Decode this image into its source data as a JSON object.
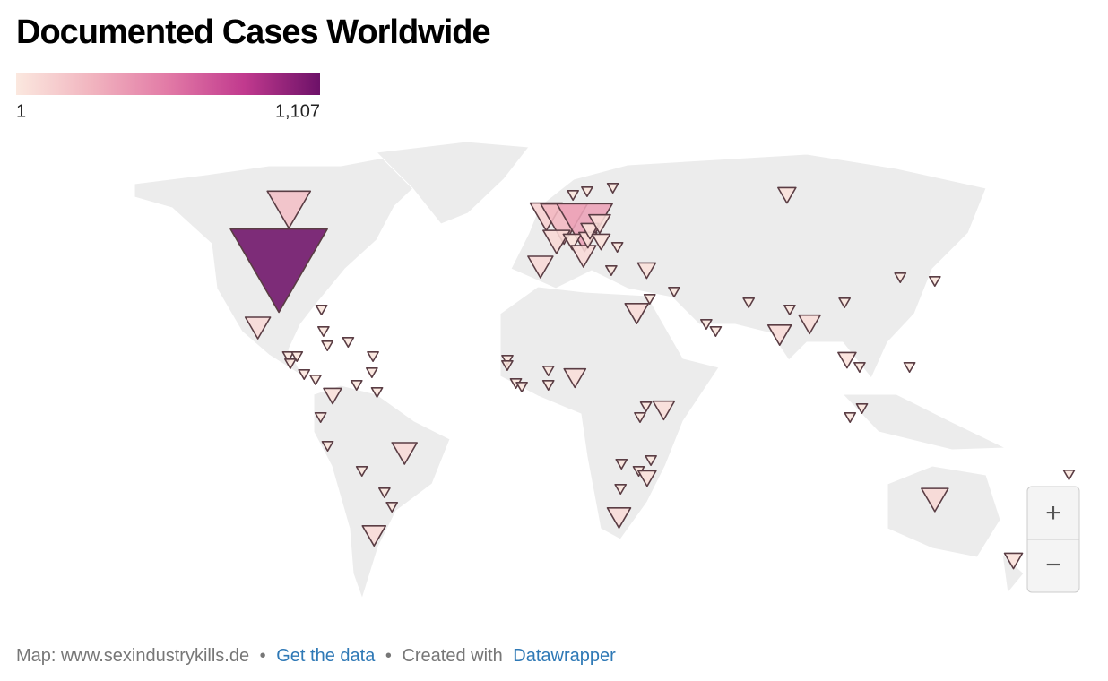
{
  "title": "Documented Cases Worldwide",
  "legend": {
    "colors": [
      "#fbe8df",
      "#f1b4bf",
      "#e27aa6",
      "#c13a8e",
      "#6d1168"
    ],
    "ticks": [
      1,
      {
        "value": 1107,
        "label": "1,107"
      }
    ]
  },
  "markers": [
    {
      "lon": -106,
      "lat": 56,
      "value": 219
    },
    {
      "lon": -100,
      "lat": 39,
      "value": 1107
    },
    {
      "lon": -102,
      "lat": 23,
      "value": 74
    },
    {
      "lon": -81,
      "lat": 28,
      "value": 14
    },
    {
      "lon": -79,
      "lat": 22,
      "value": 14
    },
    {
      "lon": -77,
      "lat": 18,
      "value": 14
    },
    {
      "lon": -70,
      "lat": 19,
      "value": 14
    },
    {
      "lon": -90,
      "lat": 15,
      "value": 14
    },
    {
      "lon": -87,
      "lat": 15,
      "value": 14
    },
    {
      "lon": -89,
      "lat": 13,
      "value": 14
    },
    {
      "lon": -84,
      "lat": 10,
      "value": 14
    },
    {
      "lon": -80,
      "lat": 8.5,
      "value": 14
    },
    {
      "lon": -61,
      "lat": 15,
      "value": 14
    },
    {
      "lon": -61,
      "lat": 10.5,
      "value": 14
    },
    {
      "lon": -66,
      "lat": 7,
      "value": 14
    },
    {
      "lon": -59,
      "lat": 5,
      "value": 14
    },
    {
      "lon": -74,
      "lat": 4,
      "value": 38
    },
    {
      "lon": -78,
      "lat": -2,
      "value": 14
    },
    {
      "lon": -76,
      "lat": -10,
      "value": 14
    },
    {
      "lon": -50,
      "lat": -12,
      "value": 74
    },
    {
      "lon": -65,
      "lat": -17,
      "value": 14
    },
    {
      "lon": -58,
      "lat": -23,
      "value": 14
    },
    {
      "lon": -56,
      "lat": -27,
      "value": 14
    },
    {
      "lon": -64,
      "lat": -35,
      "value": 64
    },
    {
      "lon": -4,
      "lat": 40,
      "value": 74
    },
    {
      "lon": -2,
      "lat": 54,
      "value": 123
    },
    {
      "lon": 5,
      "lat": 52,
      "value": 257
    },
    {
      "lon": 2,
      "lat": 47,
      "value": 85
    },
    {
      "lon": 13,
      "lat": 51,
      "value": 365
    },
    {
      "lon": 8,
      "lat": 47,
      "value": 38
    },
    {
      "lon": 12,
      "lat": 43,
      "value": 74
    },
    {
      "lon": 14,
      "lat": 47.5,
      "value": 38
    },
    {
      "lon": 15,
      "lat": 50,
      "value": 38
    },
    {
      "lon": 19,
      "lat": 52,
      "value": 55
    },
    {
      "lon": 19,
      "lat": 47,
      "value": 38
    },
    {
      "lon": 25,
      "lat": 45.5,
      "value": 14
    },
    {
      "lon": 15,
      "lat": 61,
      "value": 14
    },
    {
      "lon": 26,
      "lat": 62,
      "value": 14
    },
    {
      "lon": 9,
      "lat": 60,
      "value": 14
    },
    {
      "lon": 22,
      "lat": 39,
      "value": 14
    },
    {
      "lon": 35,
      "lat": 39,
      "value": 38
    },
    {
      "lon": 98,
      "lat": 60,
      "value": 38
    },
    {
      "lon": 30,
      "lat": 27,
      "value": 64
    },
    {
      "lon": 35,
      "lat": 31,
      "value": 14
    },
    {
      "lon": 44,
      "lat": 33,
      "value": 14
    },
    {
      "lon": 70,
      "lat": 30,
      "value": 14
    },
    {
      "lon": 54,
      "lat": 24,
      "value": 14
    },
    {
      "lon": 57,
      "lat": 22,
      "value": 14
    },
    {
      "lon": 79,
      "lat": 21,
      "value": 64
    },
    {
      "lon": 84,
      "lat": 28,
      "value": 14
    },
    {
      "lon": 90,
      "lat": 24,
      "value": 55
    },
    {
      "lon": 104,
      "lat": 30,
      "value": 14
    },
    {
      "lon": 127,
      "lat": 37,
      "value": 14
    },
    {
      "lon": 139,
      "lat": 36,
      "value": 14
    },
    {
      "lon": 101,
      "lat": 14,
      "value": 38
    },
    {
      "lon": 105,
      "lat": 12,
      "value": 14
    },
    {
      "lon": 122,
      "lat": 12,
      "value": 14
    },
    {
      "lon": 105,
      "lat": 0.5,
      "value": 14
    },
    {
      "lon": 101,
      "lat": -2,
      "value": 14
    },
    {
      "lon": 134,
      "lat": -25,
      "value": 85
    },
    {
      "lon": 172,
      "lat": -42,
      "value": 38
    },
    {
      "lon": 178,
      "lat": -18,
      "value": 14
    },
    {
      "lon": -15,
      "lat": 14,
      "value": 14
    },
    {
      "lon": -15,
      "lat": 12.5,
      "value": 14
    },
    {
      "lon": -12,
      "lat": 7.5,
      "value": 14
    },
    {
      "lon": -10,
      "lat": 6.5,
      "value": 14
    },
    {
      "lon": -1,
      "lat": 7,
      "value": 14
    },
    {
      "lon": -1,
      "lat": 11,
      "value": 14
    },
    {
      "lon": 8,
      "lat": 9,
      "value": 55
    },
    {
      "lon": 38,
      "lat": 0,
      "value": 55
    },
    {
      "lon": 32,
      "lat": 1,
      "value": 14
    },
    {
      "lon": 30,
      "lat": -2,
      "value": 14
    },
    {
      "lon": 34,
      "lat": -14,
      "value": 14
    },
    {
      "lon": 24,
      "lat": -15,
      "value": 14
    },
    {
      "lon": 30,
      "lat": -17,
      "value": 14
    },
    {
      "lon": 33,
      "lat": -19,
      "value": 38
    },
    {
      "lon": 24,
      "lat": -22,
      "value": 14
    },
    {
      "lon": 24,
      "lat": -30,
      "value": 64
    }
  ],
  "controls": {
    "zoom_in": "+",
    "zoom_out": "−"
  },
  "footer": {
    "source": "Map: www.sexindustrykills.de",
    "separator": "•",
    "get_data": "Get the data",
    "created_with": "Created with",
    "tool": "Datawrapper"
  }
}
